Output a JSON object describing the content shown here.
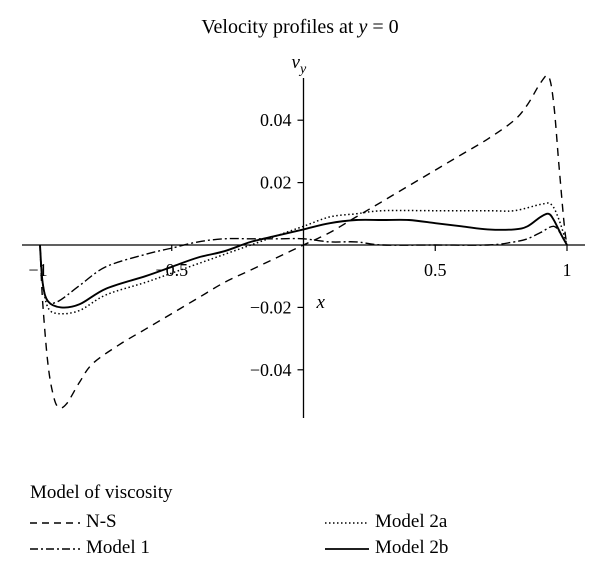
{
  "chart_data": {
    "type": "line",
    "title": "Velocity profiles at y = 0",
    "title_parts": {
      "prefix": "Velocity profiles at ",
      "var": "y",
      "suffix": " = 0"
    },
    "xlabel": "x",
    "ylabel": "v",
    "ylabel_sub": "y",
    "xlim": [
      -1,
      1
    ],
    "ylim": [
      -0.052,
      0.057
    ],
    "x_ticks": [
      -0.5,
      0.5,
      1
    ],
    "x_tick_labels": [
      "−0.5",
      "0.5",
      "1"
    ],
    "x_tick_minus1_label": "−1",
    "y_ticks": [
      0.04,
      0.02,
      -0.02,
      -0.04
    ],
    "y_tick_labels": [
      "0.04",
      "0.02",
      "−0.02",
      "−0.04"
    ],
    "grid": false,
    "legend_title": "Model of viscosity",
    "series": [
      {
        "name": "N-S",
        "style": "dashed",
        "points": [
          [
            -1,
            0
          ],
          [
            -0.99,
            -0.018
          ],
          [
            -0.97,
            -0.038
          ],
          [
            -0.95,
            -0.048
          ],
          [
            -0.93,
            -0.052
          ],
          [
            -0.9,
            -0.051
          ],
          [
            -0.85,
            -0.044
          ],
          [
            -0.8,
            -0.038
          ],
          [
            -0.7,
            -0.032
          ],
          [
            -0.6,
            -0.027
          ],
          [
            -0.5,
            -0.022
          ],
          [
            -0.4,
            -0.017
          ],
          [
            -0.3,
            -0.012
          ],
          [
            -0.2,
            -0.008
          ],
          [
            -0.1,
            -0.004
          ],
          [
            0,
            0
          ],
          [
            0.1,
            0.004
          ],
          [
            0.2,
            0.009
          ],
          [
            0.3,
            0.014
          ],
          [
            0.4,
            0.019
          ],
          [
            0.5,
            0.024
          ],
          [
            0.6,
            0.029
          ],
          [
            0.7,
            0.034
          ],
          [
            0.8,
            0.04
          ],
          [
            0.85,
            0.045
          ],
          [
            0.9,
            0.052
          ],
          [
            0.93,
            0.054
          ],
          [
            0.95,
            0.045
          ],
          [
            0.97,
            0.025
          ],
          [
            0.99,
            0.006
          ],
          [
            1,
            0
          ]
        ]
      },
      {
        "name": "Model 1",
        "style": "dashdot",
        "points": [
          [
            -1,
            0
          ],
          [
            -0.99,
            -0.012
          ],
          [
            -0.97,
            -0.018
          ],
          [
            -0.93,
            -0.018
          ],
          [
            -0.85,
            -0.013
          ],
          [
            -0.75,
            -0.007
          ],
          [
            -0.6,
            -0.003
          ],
          [
            -0.5,
            -0.001
          ],
          [
            -0.4,
            0.001
          ],
          [
            -0.3,
            0.002
          ],
          [
            -0.2,
            0.002
          ],
          [
            -0.1,
            0.002
          ],
          [
            0,
            0.002
          ],
          [
            0.1,
            0.001
          ],
          [
            0.2,
            0.001
          ],
          [
            0.3,
            0.0
          ],
          [
            0.5,
            0.0
          ],
          [
            0.7,
            0.0
          ],
          [
            0.8,
            0.001
          ],
          [
            0.85,
            0.002
          ],
          [
            0.9,
            0.004
          ],
          [
            0.95,
            0.006
          ],
          [
            0.98,
            0.003
          ],
          [
            1,
            0
          ]
        ]
      },
      {
        "name": "Model 2a",
        "style": "dotted",
        "points": [
          [
            -1,
            0
          ],
          [
            -0.99,
            -0.012
          ],
          [
            -0.97,
            -0.02
          ],
          [
            -0.93,
            -0.022
          ],
          [
            -0.85,
            -0.021
          ],
          [
            -0.75,
            -0.016
          ],
          [
            -0.6,
            -0.012
          ],
          [
            -0.5,
            -0.009
          ],
          [
            -0.4,
            -0.006
          ],
          [
            -0.3,
            -0.003
          ],
          [
            -0.2,
            0.0
          ],
          [
            -0.1,
            0.003
          ],
          [
            0,
            0.006
          ],
          [
            0.1,
            0.009
          ],
          [
            0.2,
            0.01
          ],
          [
            0.3,
            0.011
          ],
          [
            0.5,
            0.011
          ],
          [
            0.7,
            0.011
          ],
          [
            0.8,
            0.011
          ],
          [
            0.9,
            0.013
          ],
          [
            0.94,
            0.013
          ],
          [
            0.97,
            0.008
          ],
          [
            1,
            0
          ]
        ]
      },
      {
        "name": "Model 2b",
        "style": "solid",
        "points": [
          [
            -1,
            0
          ],
          [
            -0.99,
            -0.012
          ],
          [
            -0.97,
            -0.018
          ],
          [
            -0.92,
            -0.02
          ],
          [
            -0.85,
            -0.019
          ],
          [
            -0.75,
            -0.014
          ],
          [
            -0.6,
            -0.01
          ],
          [
            -0.5,
            -0.007
          ],
          [
            -0.4,
            -0.004
          ],
          [
            -0.3,
            -0.002
          ],
          [
            -0.2,
            0.001
          ],
          [
            -0.1,
            0.003
          ],
          [
            0,
            0.005
          ],
          [
            0.1,
            0.007
          ],
          [
            0.2,
            0.008
          ],
          [
            0.3,
            0.008
          ],
          [
            0.4,
            0.008
          ],
          [
            0.5,
            0.007
          ],
          [
            0.6,
            0.006
          ],
          [
            0.7,
            0.005
          ],
          [
            0.8,
            0.005
          ],
          [
            0.85,
            0.006
          ],
          [
            0.9,
            0.009
          ],
          [
            0.93,
            0.01
          ],
          [
            0.95,
            0.008
          ],
          [
            0.98,
            0.003
          ],
          [
            1,
            0
          ]
        ]
      }
    ]
  }
}
